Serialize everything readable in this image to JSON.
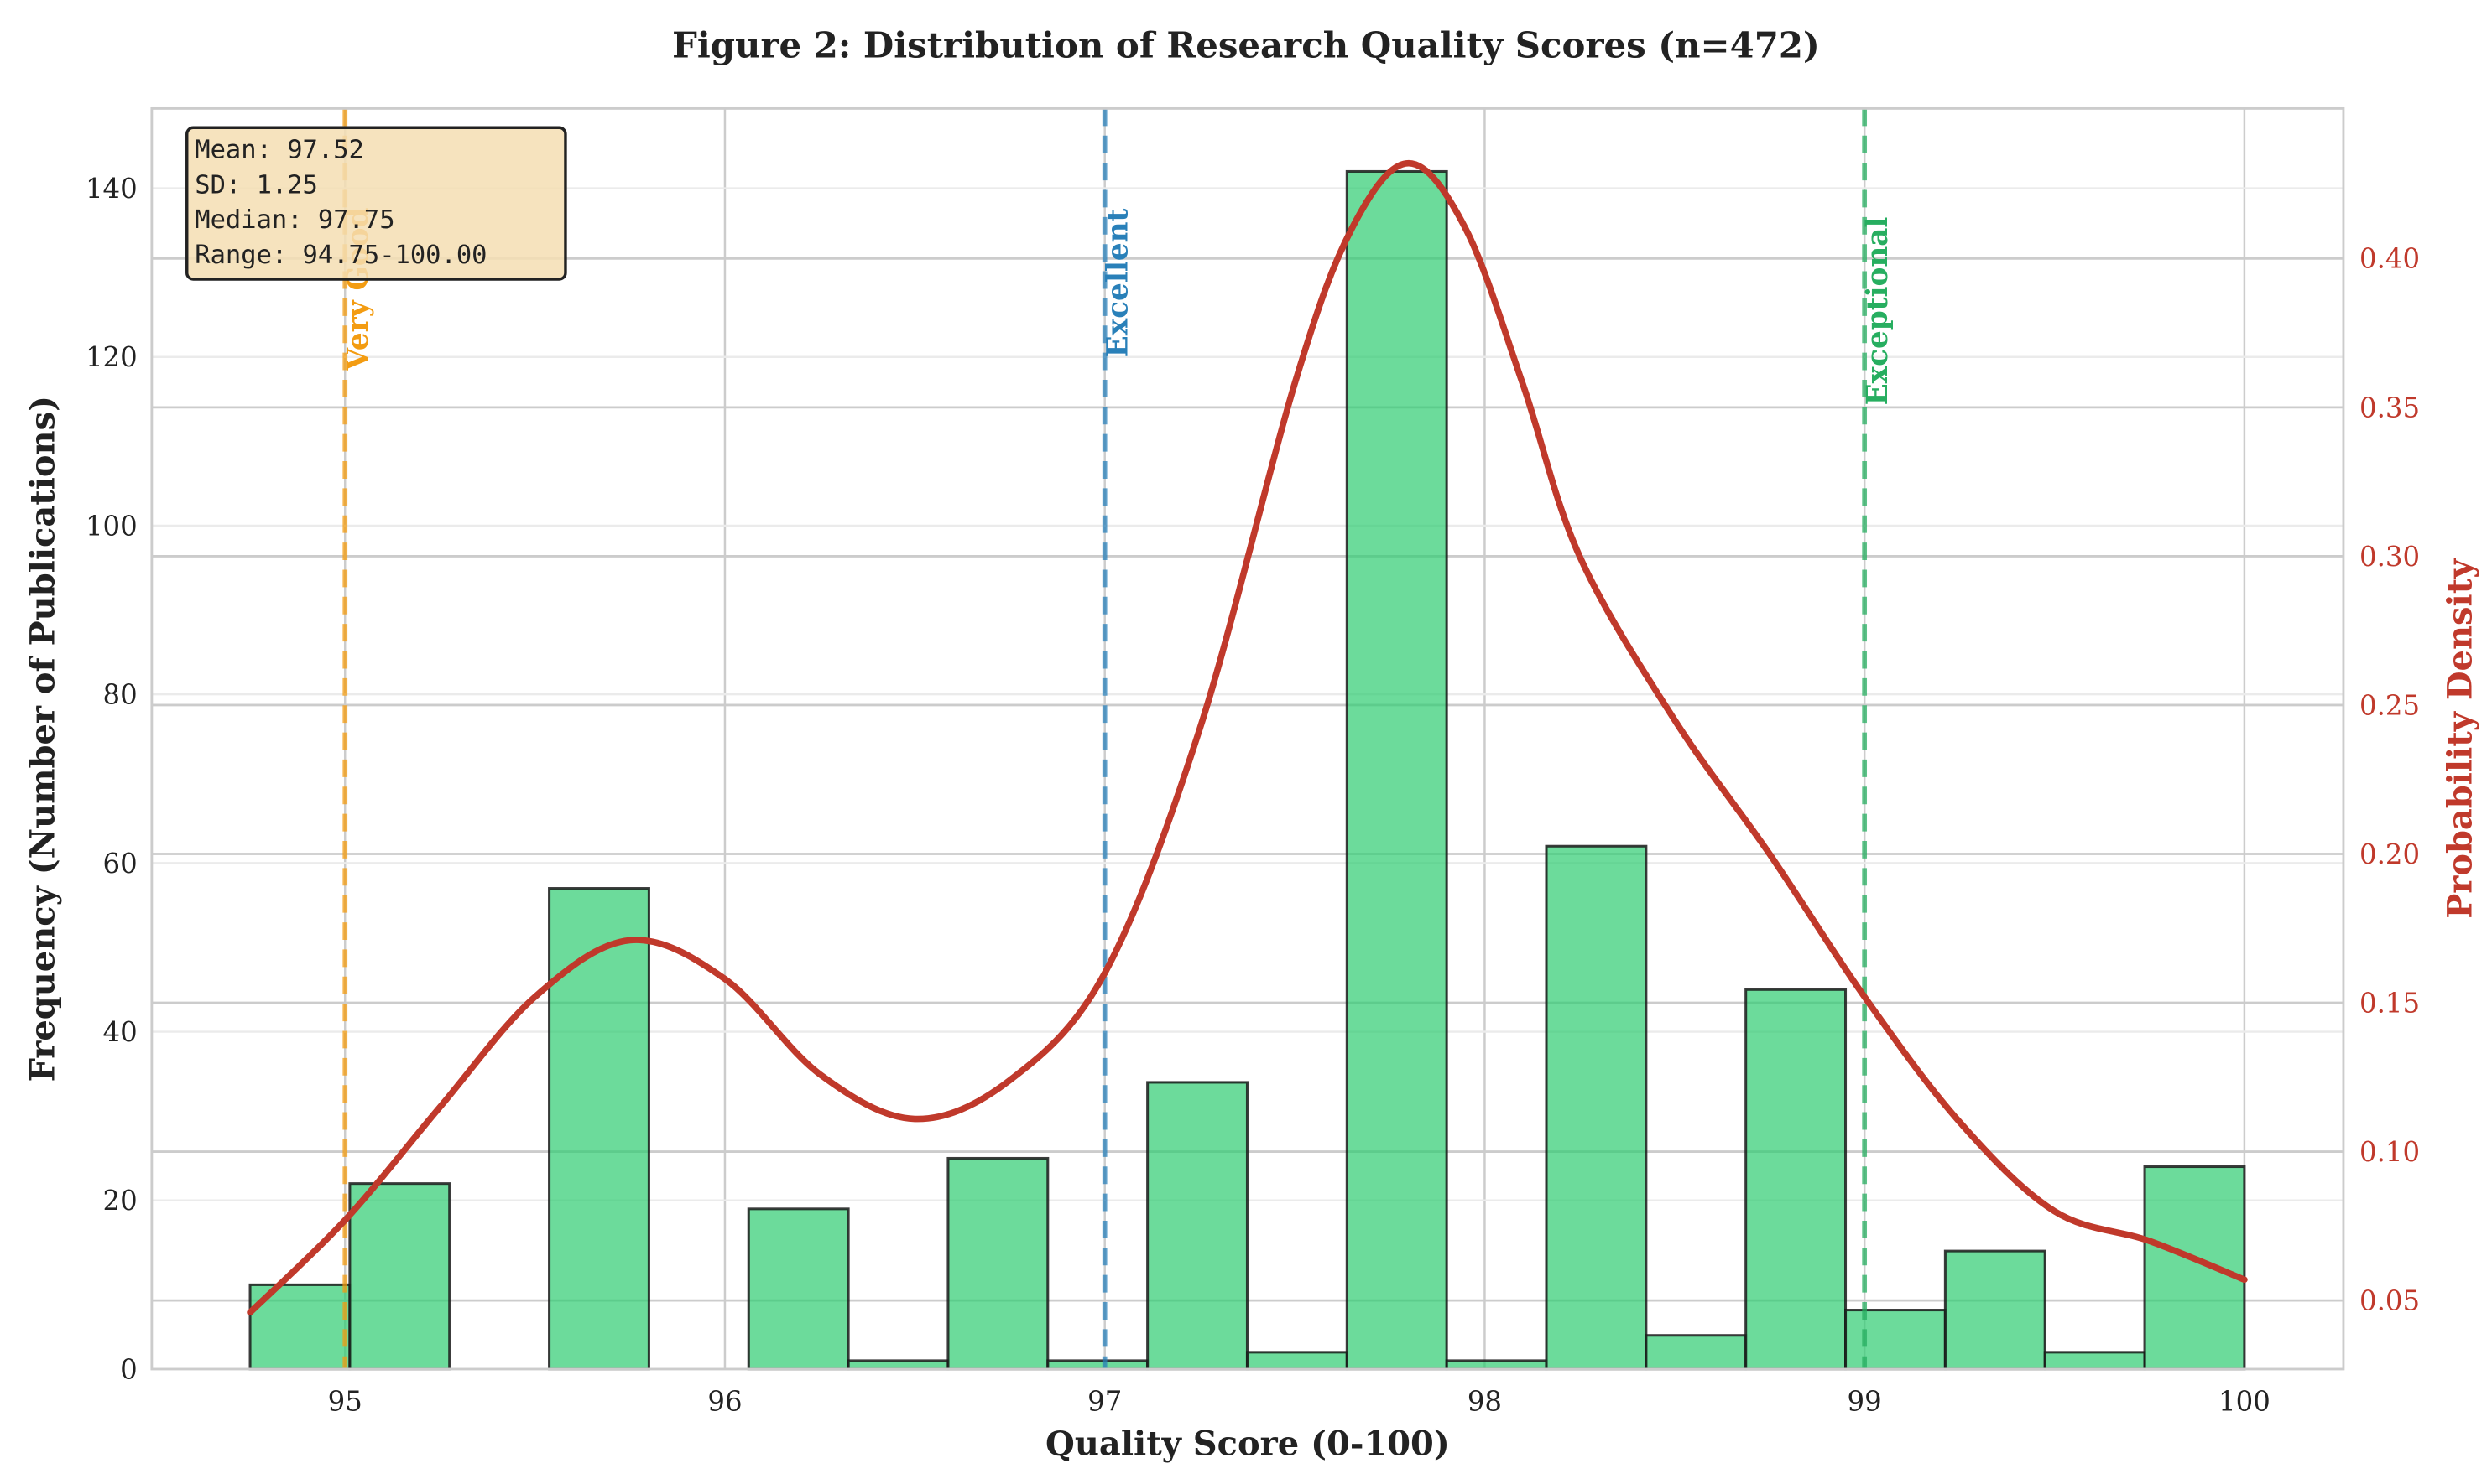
{
  "chart_data": {
    "type": "bar",
    "subtype": "histogram_with_kde",
    "title": "Figure 2: Distribution of Research Quality Scores (n=472)",
    "xlabel": "Quality Score (0-100)",
    "ylabel": "Frequency (Number of Publications)",
    "ylabel_right": "Probability Density",
    "xlim": [
      94.49,
      100.26
    ],
    "ylim": [
      0,
      149
    ],
    "ylim_right": [
      0.027,
      0.451
    ],
    "xticks": [
      "95",
      "96",
      "97",
      "98",
      "99",
      "100"
    ],
    "yticks": [
      "0",
      "20",
      "40",
      "60",
      "80",
      "100",
      "120",
      "140"
    ],
    "yticks_right": [
      "0.05",
      "0.10",
      "0.15",
      "0.20",
      "0.25",
      "0.30",
      "0.35",
      "0.40"
    ],
    "bin_edges": [
      94.75,
      95.0125,
      95.275,
      95.5375,
      95.8,
      96.0625,
      96.325,
      96.5875,
      96.85,
      97.1125,
      97.375,
      97.6375,
      97.9,
      98.1625,
      98.425,
      98.6875,
      98.95,
      99.2125,
      99.475,
      99.7375,
      100.0
    ],
    "values": [
      10,
      22,
      0,
      57,
      0,
      19,
      1,
      25,
      1,
      34,
      2,
      142,
      1,
      62,
      4,
      45,
      7,
      14,
      2,
      24
    ],
    "kde": {
      "x": [
        94.75,
        95.0,
        95.25,
        95.5,
        95.75,
        96.0,
        96.25,
        96.5,
        96.75,
        97.0,
        97.25,
        97.5,
        97.65,
        97.8,
        97.95,
        98.1,
        98.25,
        98.5,
        98.75,
        99.0,
        99.25,
        99.5,
        99.75,
        100.0
      ],
      "y": [
        0.046,
        0.077,
        0.115,
        0.152,
        0.171,
        0.158,
        0.126,
        0.111,
        0.124,
        0.16,
        0.242,
        0.358,
        0.41,
        0.432,
        0.41,
        0.358,
        0.3,
        0.245,
        0.2,
        0.152,
        0.11,
        0.08,
        0.07,
        0.057
      ]
    },
    "reference_lines": [
      {
        "x": 95,
        "label": "Very Good",
        "color": "#f39c12"
      },
      {
        "x": 97,
        "label": "Excellent",
        "color": "#2980b9"
      },
      {
        "x": 99,
        "label": "Exceptional",
        "color": "#27ae60"
      }
    ],
    "stats_box": {
      "lines": [
        "Mean: 97.52",
        "SD: 1.25",
        "Median: 97.75",
        "Range: 94.75-100.00"
      ]
    },
    "colors": {
      "bar_fill": "#2ecc71",
      "bar_edge": "#1a1a1a",
      "kde_line": "#c0392b",
      "right_axis": "#c0392b",
      "stats_box_bg": "#f5deb3"
    },
    "grid": true,
    "legend": null
  }
}
